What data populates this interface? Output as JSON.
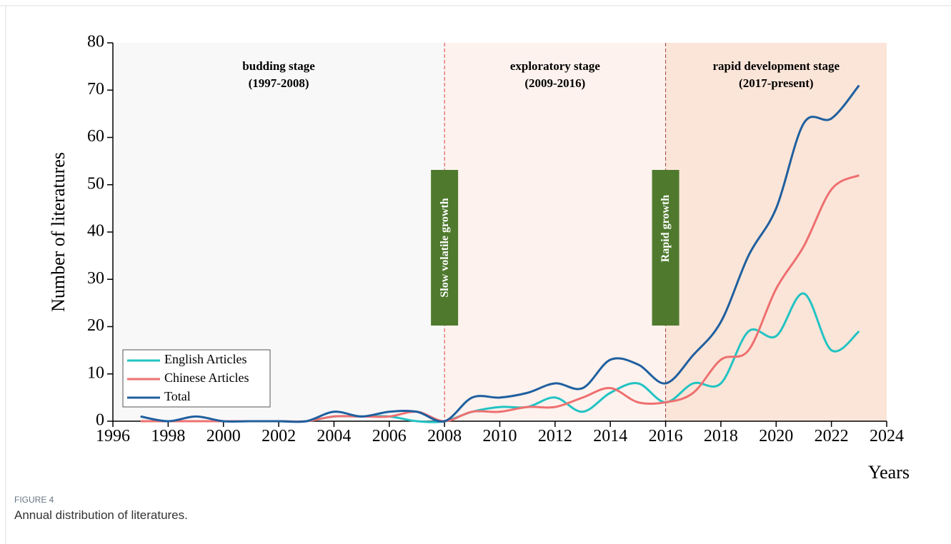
{
  "chart_data": {
    "type": "line",
    "y_label": "Number of literatures",
    "x_label": "Years",
    "x": [
      1997,
      1998,
      1999,
      2000,
      2001,
      2002,
      2003,
      2004,
      2005,
      2006,
      2007,
      2008,
      2009,
      2010,
      2011,
      2012,
      2013,
      2014,
      2015,
      2016,
      2017,
      2018,
      2019,
      2020,
      2021,
      2022,
      2023
    ],
    "series": [
      {
        "name": "English Articles",
        "color": "#22c3c3",
        "values": [
          0,
          0,
          0,
          0,
          0,
          0,
          0,
          1,
          1,
          1,
          0,
          0,
          2,
          3,
          3,
          5,
          2,
          6,
          8,
          4,
          8,
          8,
          19,
          18,
          27,
          15,
          19
        ]
      },
      {
        "name": "Chinese Articles",
        "color": "#ee7070",
        "values": [
          0,
          0,
          0,
          0,
          0,
          0,
          0,
          1,
          1,
          1,
          2,
          0,
          2,
          2,
          3,
          3,
          5,
          7,
          4,
          4,
          6,
          13,
          15,
          28,
          37,
          49,
          52
        ]
      },
      {
        "name": "Total",
        "color": "#1f5f9f",
        "values": [
          1,
          0,
          1,
          0,
          0,
          0,
          0,
          2,
          1,
          2,
          2,
          0,
          5,
          5,
          6,
          8,
          7,
          13,
          12,
          8,
          14,
          21,
          35,
          45,
          63,
          64,
          71
        ]
      }
    ],
    "xlim": [
      1996,
      2024
    ],
    "xticks": [
      1996,
      1998,
      2000,
      2002,
      2004,
      2006,
      2008,
      2010,
      2012,
      2014,
      2016,
      2018,
      2020,
      2022,
      2024
    ],
    "ylim": [
      0,
      80
    ],
    "yticks": [
      0,
      10,
      20,
      30,
      40,
      50,
      60,
      70,
      80
    ],
    "dividers": [
      2008,
      2016
    ],
    "stages": [
      {
        "label": "budding stage",
        "period": "(1997-2008)",
        "color": "#f8f8f8"
      },
      {
        "label": "exploratory stage",
        "period": "(2009-2016)",
        "color": "#fdf2ee"
      },
      {
        "label": "rapid development stage",
        "period": "(2017-present)",
        "color": "#fbe5d8"
      }
    ],
    "growth_labels": [
      "Slow volatile growth",
      "Rapid growth"
    ],
    "legend": "lower left",
    "caption_label": "FIGURE 4",
    "caption": "Annual distribution of literatures."
  }
}
